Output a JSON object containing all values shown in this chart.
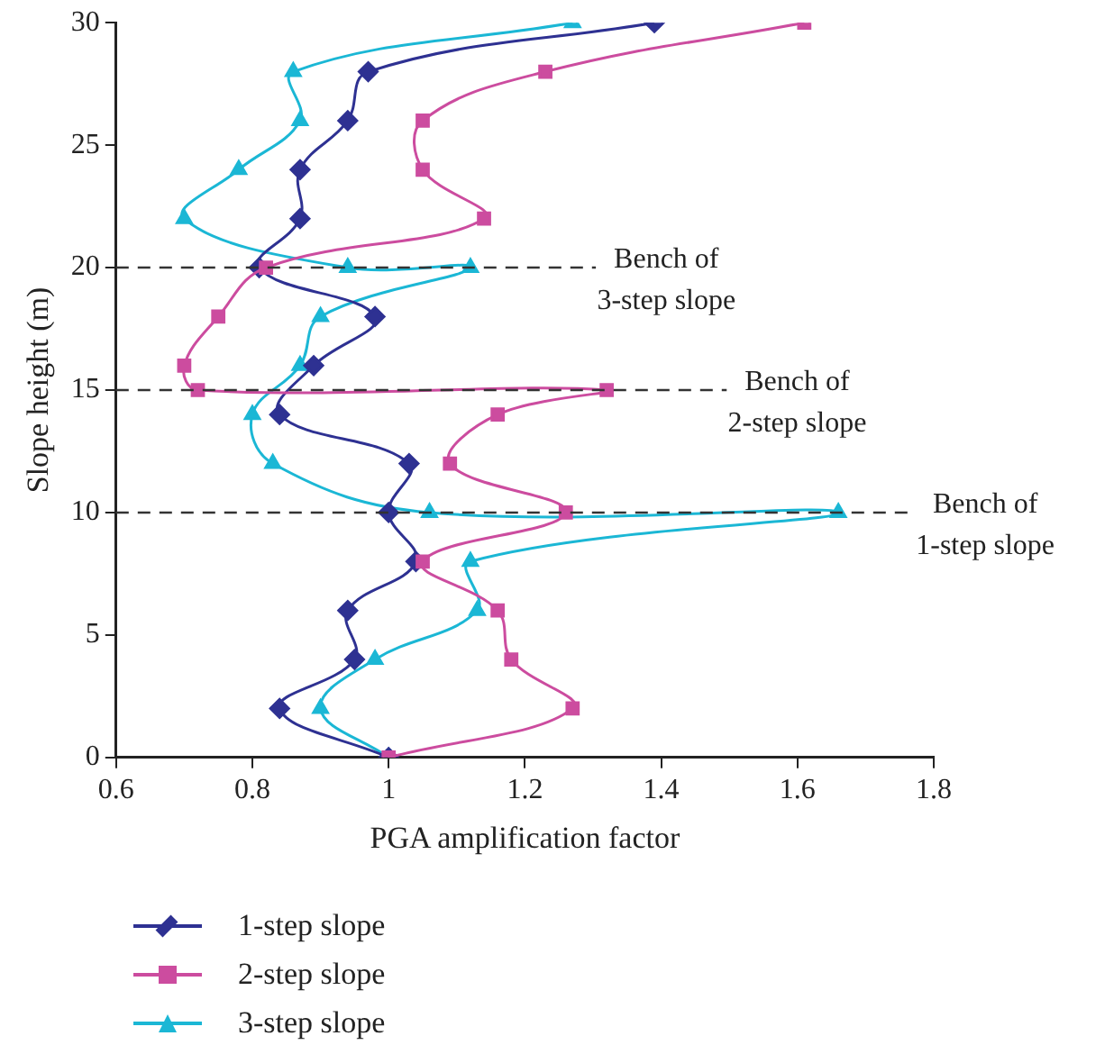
{
  "chart_data": {
    "type": "line",
    "xlabel": "PGA amplification factor",
    "ylabel": "Slope height (m)",
    "xlim": [
      0.6,
      1.8
    ],
    "xticks": [
      0.6,
      0.8,
      1,
      1.2,
      1.4,
      1.6,
      1.8
    ],
    "ylim": [
      0,
      30
    ],
    "yticks": [
      0,
      5,
      10,
      15,
      20,
      25,
      30
    ],
    "grid": false,
    "legend": "bottom",
    "series": [
      {
        "name": "1-step slope",
        "color": "#2e3192",
        "marker": "diamond",
        "x": [
          1.0,
          0.84,
          0.95,
          0.94,
          1.04,
          1.0,
          1.03,
          0.84,
          0.89,
          0.98,
          0.81,
          0.87,
          0.87,
          0.94,
          0.97,
          1.39
        ],
        "values": [
          0,
          2,
          4,
          6,
          8,
          10,
          12,
          14,
          16,
          18,
          20,
          22,
          24,
          26,
          28,
          30
        ]
      },
      {
        "name": "2-step slope",
        "color": "#cc4c9f",
        "marker": "square",
        "x": [
          1.0,
          1.27,
          1.18,
          1.16,
          1.05,
          1.26,
          1.09,
          1.16,
          1.32,
          0.72,
          0.7,
          0.75,
          0.82,
          1.14,
          1.05,
          1.05,
          1.23,
          1.61
        ],
        "values": [
          0,
          2,
          4,
          6,
          8,
          10,
          12,
          14,
          15,
          15,
          16,
          18,
          20,
          22,
          24,
          26,
          28,
          30
        ]
      },
      {
        "name": "3-step slope",
        "color": "#1bb7d5",
        "marker": "triangle",
        "x": [
          1.0,
          0.9,
          0.98,
          1.13,
          1.12,
          1.66,
          1.06,
          0.83,
          0.8,
          0.87,
          0.9,
          1.12,
          0.94,
          0.7,
          0.78,
          0.87,
          0.86,
          1.27
        ],
        "values": [
          0,
          2,
          4,
          6,
          8,
          10,
          10,
          12,
          14,
          16,
          18,
          20,
          20,
          22,
          24,
          26,
          28,
          30
        ]
      }
    ],
    "ref_lines": [
      {
        "axis": "y",
        "value": 20,
        "label": "Bench of\n3-step slope",
        "color": "#333333",
        "line_style": "dashed"
      },
      {
        "axis": "y",
        "value": 15,
        "label": "Bench of\n2-step slope",
        "color": "#333333",
        "line_style": "dashed"
      },
      {
        "axis": "y",
        "value": 10,
        "label": "Bench of\n1-step slope",
        "color": "#333333",
        "line_style": "dashed"
      }
    ]
  }
}
